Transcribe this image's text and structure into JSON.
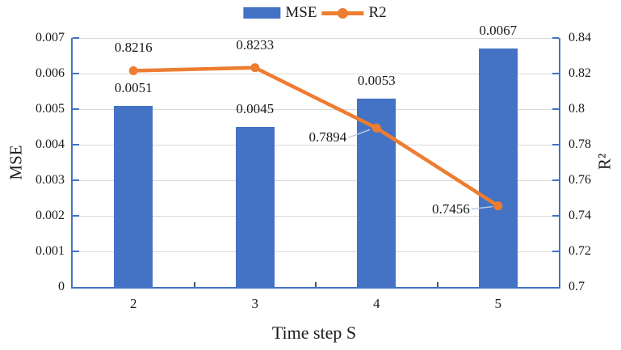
{
  "chart_data": {
    "type": "bar+line",
    "categories": [
      "2",
      "3",
      "4",
      "5"
    ],
    "xlabel": "Time step S",
    "ylabel_left": "MSE",
    "ylabel_right": "R²",
    "grid": true,
    "legend_position": "top-center",
    "series": [
      {
        "name": "MSE",
        "type": "bar",
        "axis": "left",
        "values": [
          0.0051,
          0.0045,
          0.0053,
          0.0067
        ],
        "labels": [
          "0.0051",
          "0.0045",
          "0.0053",
          "0.0067"
        ]
      },
      {
        "name": "R2",
        "type": "line",
        "axis": "right",
        "values": [
          0.8216,
          0.8233,
          0.7894,
          0.7456
        ],
        "labels": [
          "0.8216",
          "0.8233",
          "0.7894",
          "0.7456"
        ]
      }
    ],
    "axis_left": {
      "min": 0,
      "max": 0.007,
      "step": 0.001,
      "tick_labels": [
        "0",
        "0.001",
        "0.002",
        "0.003",
        "0.004",
        "0.005",
        "0.006",
        "0.007"
      ]
    },
    "axis_right": {
      "min": 0.7,
      "max": 0.84,
      "step": 0.02,
      "tick_labels": [
        "0.7",
        "0.72",
        "0.74",
        "0.76",
        "0.78",
        "0.8",
        "0.82",
        "0.84"
      ]
    },
    "colors": {
      "bar": "#4472C4",
      "line": "#ED7D31",
      "axis": "#4472C4",
      "grid": "#D9D9D9",
      "minor_tick": "#44546A",
      "leader": "#B8CCE4",
      "text": "#1a1a1a"
    }
  }
}
